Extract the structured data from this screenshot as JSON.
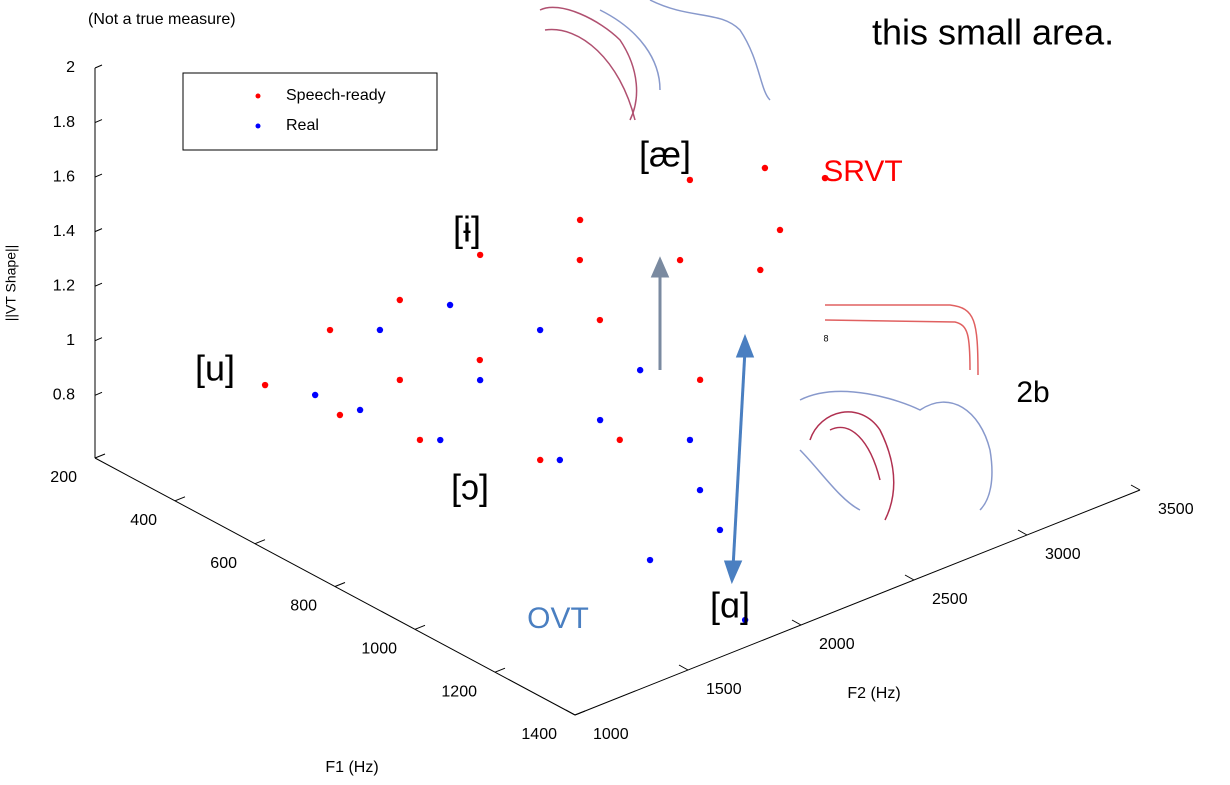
{
  "chart_data": {
    "type": "scatter3d",
    "note_top_left": "(Not a true measure)",
    "caption": "this small area.",
    "xlabel": "F1 (Hz)",
    "ylabel": "F2 (Hz)",
    "zlabel": "||VT Shape||",
    "xlim": [
      200,
      1400
    ],
    "xticks": [
      200,
      400,
      600,
      800,
      1000,
      1200,
      1400
    ],
    "ylim": [
      1000,
      3500
    ],
    "yticks": [
      1000,
      1500,
      2000,
      2500,
      3000,
      3500
    ],
    "zlim": [
      0.57,
      2
    ],
    "zticks": [
      0.8,
      1,
      1.2,
      1.4,
      1.6,
      1.8,
      2
    ],
    "series": [
      {
        "name": "Speech-ready",
        "color": "#ff0000",
        "f1": [
          354,
          422,
          562,
          673,
          759,
          842,
          890,
          908,
          866,
          950,
          952,
          848,
          666,
          514,
          662,
          756,
          720,
          827,
          926,
          557
        ],
        "f2": [
          1480,
          1647,
          1708,
          1867,
          2157,
          2496,
          2743,
          2977,
          2765,
          2350,
          1991,
          1823,
          1613,
          1528,
          1885,
          2250,
          2225,
          2479,
          2746,
          1717
        ],
        "z": [
          0.8,
          1.0,
          1.2,
          1.4,
          1.5,
          1.6,
          1.6,
          1.5,
          1.2,
          1.0,
          0.9,
          0.8,
          0.8,
          0.8,
          1.0,
          1.1,
          1.3,
          1.3,
          1.4,
          0.9
        ]
      },
      {
        "name": "Real",
        "color": "#0000ff",
        "f1": [
          434,
          475,
          556,
          719,
          860,
          954,
          1081,
          1349,
          1087,
          796,
          688,
          522,
          643,
          878,
          1026
        ],
        "f2": [
          1560,
          1774,
          1941,
          2051,
          2244,
          2298,
          2206,
          1843,
          1886,
          2002,
          1664,
          1603,
          1920,
          2035,
          2215
        ],
        "z": [
          0.8,
          1.0,
          1.1,
          1.1,
          1.0,
          0.8,
          0.6,
          0.6,
          0.6,
          0.7,
          0.8,
          0.8,
          0.9,
          0.9,
          0.7
        ]
      }
    ],
    "annotations": [
      {
        "text": "[æ]",
        "color": "#000000"
      },
      {
        "text": "[ɨ]",
        "color": "#000000"
      },
      {
        "text": "[u]",
        "color": "#000000"
      },
      {
        "text": "[ɔ]",
        "color": "#000000"
      },
      {
        "text": "[ɑ]",
        "color": "#000000"
      },
      {
        "text": "SRVT",
        "color": "#ff0000"
      },
      {
        "text": "OVT",
        "color": "#4a7fc1"
      },
      {
        "text": "2b",
        "color": "#000000"
      },
      {
        "text": "8",
        "color": "#000000"
      }
    ],
    "legend": "upper-left"
  }
}
